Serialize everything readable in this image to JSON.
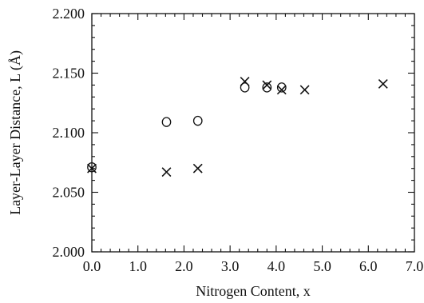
{
  "chart_data": {
    "type": "scatter",
    "xlabel": "Nitrogen Content,  x",
    "ylabel": "Layer-Layer Distance,  L (Å)",
    "xlim": [
      0.0,
      7.0
    ],
    "ylim": [
      2.0,
      2.2
    ],
    "x_ticks": [
      0.0,
      1.0,
      2.0,
      3.0,
      4.0,
      5.0,
      6.0,
      7.0
    ],
    "x_tick_labels": [
      "0.0",
      "1.0",
      "2.0",
      "3.0",
      "4.0",
      "5.0",
      "6.0",
      "7.0"
    ],
    "y_ticks": [
      2.0,
      2.05,
      2.1,
      2.15,
      2.2
    ],
    "y_tick_labels": [
      "2.000",
      "2.050",
      "2.100",
      "2.150",
      "2.200"
    ],
    "grid": false,
    "series": [
      {
        "marker": "circle",
        "x": [
          0.0,
          1.62,
          2.3,
          3.32,
          3.8,
          4.12
        ],
        "y": [
          2.071,
          2.109,
          2.11,
          2.138,
          2.138,
          2.138
        ]
      },
      {
        "marker": "cross",
        "x": [
          0.0,
          1.62,
          2.3,
          3.32,
          3.8,
          4.12,
          4.62,
          6.32
        ],
        "y": [
          2.07,
          2.067,
          2.07,
          2.143,
          2.14,
          2.136,
          2.136,
          2.141
        ]
      }
    ],
    "colors": {
      "ink": "#111111",
      "background": "#ffffff"
    }
  }
}
